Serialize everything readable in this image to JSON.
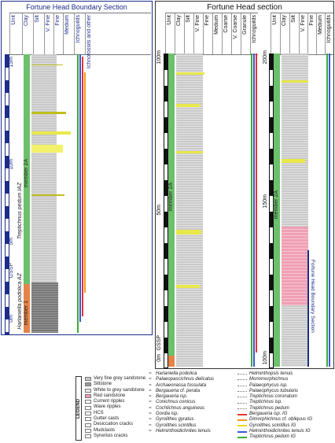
{
  "left_panel": {
    "title": "Fortune Head Boundary Section",
    "headers": [
      "Unit",
      "Clay",
      "Silt",
      "V. Fine",
      "Fine",
      "Medium",
      "Ichnoguilds",
      "Ichnofossils and other"
    ],
    "scale_ticks": [
      "15m",
      "10m",
      "5m",
      "GSSP",
      "0m"
    ],
    "member_top": "member 2A",
    "member_bottom": "member 1",
    "zone_upper": "Treptichnus pedum IAZ",
    "zone_lower": "Harlaniella podolica AZ"
  },
  "right_panel": {
    "title": "Fortune Head section",
    "headers_a": [
      "Unit",
      "Clay",
      "Silt",
      "V. Fine",
      "Fine",
      "Medium",
      "Coarse",
      "V. Coarse",
      "Granule",
      "Ichnoguilds"
    ],
    "headers_b": [
      "Unit",
      "Clay",
      "Silt",
      "V. Fine",
      "Fine",
      "Medium",
      "Ichnoguilds"
    ],
    "ticks_a": [
      "100m",
      "50m",
      "GSSP",
      "0m"
    ],
    "ticks_b": [
      "200m",
      "150m",
      "100m"
    ],
    "member_a": "member 2A",
    "member_b": "member 2A",
    "boundary_label": "Fortune Head Boundary Section"
  },
  "legend": {
    "title": "LEGEND",
    "lithology": [
      {
        "label": "Very fine grey sandstone",
        "color": "#c9c9c9"
      },
      {
        "label": "Siltstone",
        "color": "#9a9a9a"
      },
      {
        "label": "White to grey sandstone",
        "color": "#ececec"
      },
      {
        "label": "Red sandstone",
        "color": "#f0a0b4"
      },
      {
        "label": "Current ripples",
        "color": "#ffffff"
      },
      {
        "label": "Wave ripples",
        "color": "#ffffff"
      },
      {
        "label": "HCS",
        "color": "#ffffff"
      },
      {
        "label": "Gutter casts",
        "color": "#ffffff"
      },
      {
        "label": "Desiccation cracks",
        "color": "#ffffff"
      },
      {
        "label": "Mudclasts",
        "color": "#ffffff"
      },
      {
        "label": "Synerisis cracks",
        "color": "#ffffff"
      }
    ],
    "ichnofossils": [
      "Harlaniella podolica",
      "Palaeopascichnus delicatus",
      "Archaeonassa fossulata",
      "Bergaueria cf. perata",
      "Bergaueria isp.",
      "Conichnus conicus",
      "Cochlichnus anguineus",
      "Gordia isp.",
      "Gyrolithes gyratus",
      "Gyrolithes scintillus",
      "Helminthoidichnites tenuis"
    ],
    "ichnoguilds": [
      {
        "label": "Helminthopsis tenuis",
        "color": "#ffffff"
      },
      {
        "label": "Monomorphichnus",
        "color": "#ffffff"
      },
      {
        "label": "Palaeophycus isp.",
        "color": "#ffffff"
      },
      {
        "label": "Palaeophycus tubularis",
        "color": "#ffffff"
      },
      {
        "label": "Treptichnus coronatum",
        "color": "#ffffff"
      },
      {
        "label": "Treptichnus isp.",
        "color": "#ffffff"
      },
      {
        "label": "Treptichnus pedum",
        "color": "#ffffff"
      },
      {
        "label": "Bergaueria isp. IG",
        "color": "#e8352b"
      },
      {
        "label": "Dimorphichnus cf. obliquus IG",
        "color": "#f29a1f"
      },
      {
        "label": "Gyrolithes scintillus IG",
        "color": "#f2d51f"
      },
      {
        "label": "Helminthoidichnites tenuis IG",
        "color": "#3b57d6"
      },
      {
        "label": "Treptichnus pedum IG",
        "color": "#3aaa3a"
      }
    ]
  }
}
